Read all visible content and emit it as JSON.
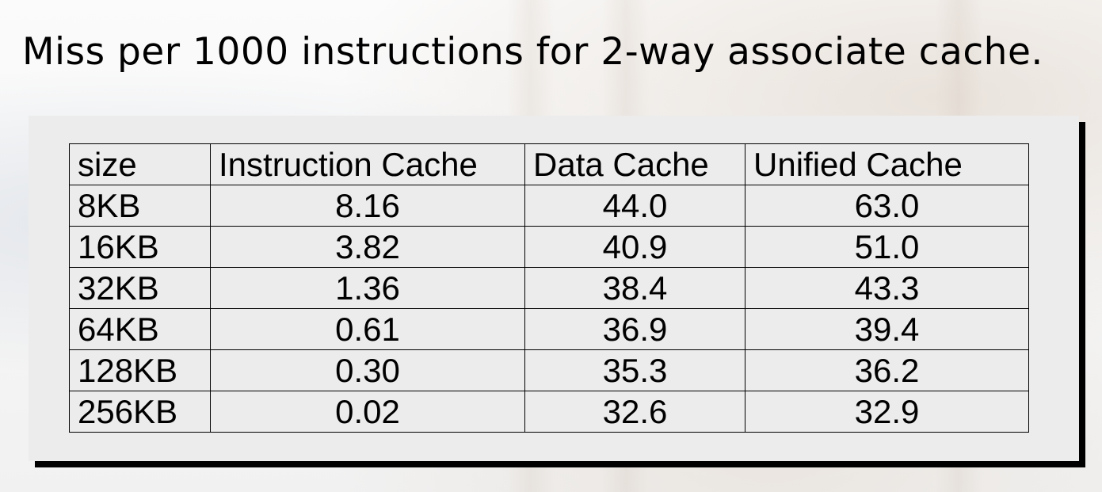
{
  "title": "Miss per 1000 instructions for 2-way associate cache.",
  "table": {
    "headers": [
      "size",
      "Instruction Cache",
      "Data Cache",
      "Unified Cache"
    ],
    "rows": [
      [
        "8KB",
        "8.16",
        "44.0",
        "63.0"
      ],
      [
        "16KB",
        "3.82",
        "40.9",
        "51.0"
      ],
      [
        "32KB",
        "1.36",
        "38.4",
        "43.3"
      ],
      [
        "64KB",
        "0.61",
        "36.9",
        "39.4"
      ],
      [
        "128KB",
        "0.30",
        "35.3",
        "36.2"
      ],
      [
        "256KB",
        "0.02",
        "32.6",
        "32.9"
      ]
    ]
  },
  "colors": {
    "panel_background": "#ececec",
    "panel_shadow": "#000000",
    "text": "#000000"
  }
}
